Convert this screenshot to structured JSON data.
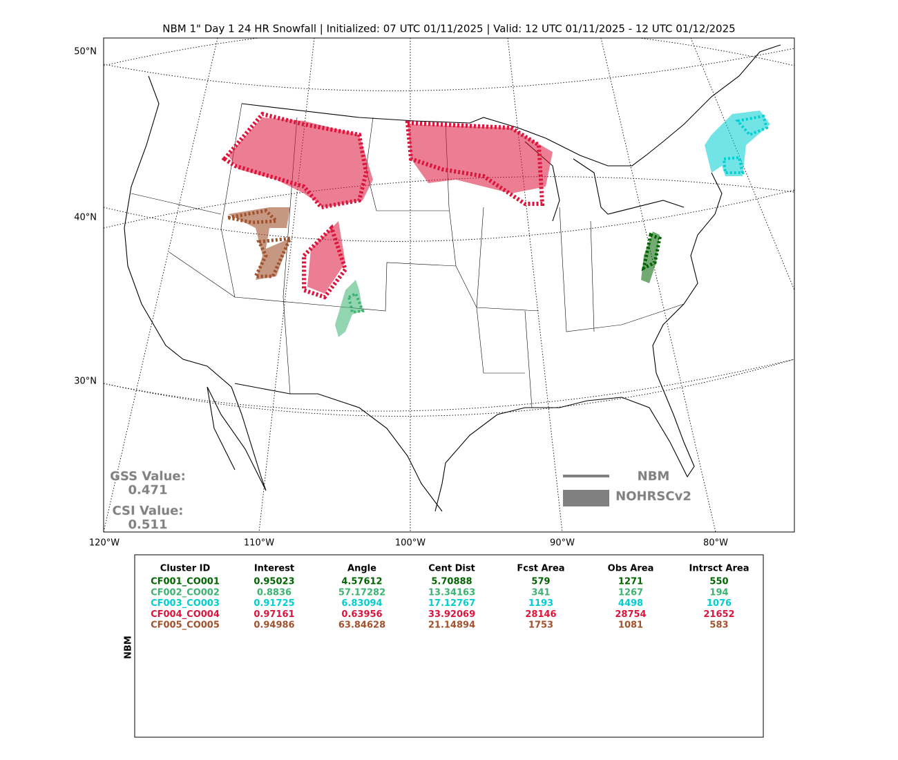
{
  "title": "NBM 1\" Day 1 24 HR Snowfall | Initialized: 07 UTC 01/11/2025 | Valid: 12 UTC 01/11/2025 - 12 UTC 01/12/2025",
  "lat_labels": [
    "50°N",
    "40°N",
    "30°N"
  ],
  "lon_labels": [
    "120°W",
    "110°W",
    "100°W",
    "90°W",
    "80°W"
  ],
  "scores": [
    {
      "label": "GSS Value:",
      "value": "0.471"
    },
    {
      "label": "CSI Value:",
      "value": "0.511"
    }
  ],
  "legend": [
    "NBM",
    "NOHRSCv2"
  ],
  "table": {
    "side_label": "NBM",
    "columns": [
      "Cluster ID",
      "Interest",
      "Angle",
      "Cent Dist",
      "Fcst Area",
      "Obs Area",
      "Intrsct Area"
    ],
    "row_colors": [
      "#006400",
      "#3cb371",
      "#00ced1",
      "#dc143c",
      "#a0522d"
    ],
    "rows": [
      [
        "CF001_CO001",
        "0.95023",
        "4.57612",
        "5.70888",
        "579",
        "1271",
        "550"
      ],
      [
        "CF002_CO002",
        "0.8836",
        "57.17282",
        "13.34163",
        "341",
        "1267",
        "194"
      ],
      [
        "CF003_CO003",
        "0.91725",
        "6.83094",
        "17.12767",
        "1193",
        "4498",
        "1076"
      ],
      [
        "CF004_CO004",
        "0.97161",
        "0.63956",
        "33.92069",
        "28146",
        "28754",
        "21652"
      ],
      [
        "CF005_CO005",
        "0.94986",
        "63.84628",
        "21.14894",
        "1753",
        "1081",
        "583"
      ]
    ]
  }
}
